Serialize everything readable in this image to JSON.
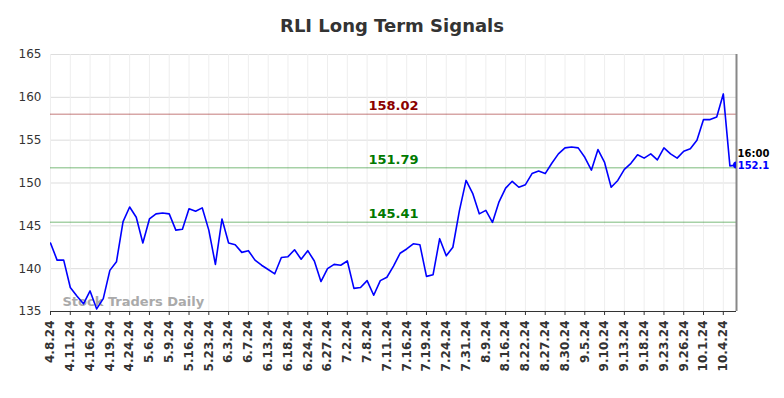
{
  "chart_data": {
    "type": "line",
    "title": "RLI Long Term Signals",
    "categories": [
      "4.8.24",
      null,
      null,
      "4.11.24",
      null,
      null,
      "4.16.24",
      null,
      null,
      "4.19.24",
      null,
      null,
      "4.24.24",
      null,
      null,
      "5.6.24",
      null,
      null,
      "5.9.24",
      null,
      null,
      "5.16.24",
      null,
      null,
      "5.23.24",
      null,
      null,
      "6.3.24",
      null,
      null,
      "6.7.24",
      null,
      null,
      "6.13.24",
      null,
      null,
      "6.18.24",
      null,
      null,
      "6.24.24",
      null,
      null,
      "6.27.24",
      null,
      null,
      "7.2.24",
      null,
      null,
      "7.8.24",
      null,
      null,
      "7.11.24",
      null,
      null,
      "7.16.24",
      null,
      null,
      "7.19.24",
      null,
      null,
      "7.24.24",
      null,
      null,
      "7.31.24",
      null,
      null,
      "8.9.24",
      null,
      null,
      "8.16.24",
      null,
      null,
      "8.22.24",
      null,
      null,
      "8.27.24",
      null,
      null,
      "8.30.24",
      null,
      null,
      "9.5.24",
      null,
      null,
      "9.10.24",
      null,
      null,
      "9.13.24",
      null,
      null,
      "9.18.24",
      null,
      null,
      "9.23.24",
      null,
      null,
      "9.26.24",
      null,
      null,
      "10.1.24",
      null,
      null,
      "10.4.24",
      null,
      null
    ],
    "values": [
      143,
      141,
      141,
      137.8,
      136.8,
      135.9,
      137.4,
      135.3,
      136.5,
      139.8,
      140.8,
      145.5,
      147.2,
      146,
      143,
      145.8,
      146.4,
      146.5,
      146.4,
      144.5,
      144.6,
      147,
      146.7,
      147.1,
      144.5,
      140.5,
      145.8,
      143,
      142.8,
      141.9,
      142.1,
      141,
      140.4,
      139.9,
      139.4,
      141.3,
      141.4,
      142.2,
      141.1,
      142.1,
      140.9,
      138.5,
      140,
      140.5,
      140.4,
      140.9,
      137.7,
      137.8,
      138.6,
      136.9,
      138.6,
      139,
      140.3,
      141.8,
      142.3,
      142.9,
      142.8,
      139.1,
      139.3,
      143.5,
      141.5,
      142.5,
      146.8,
      150.3,
      148.8,
      146.4,
      146.8,
      145.4,
      147.8,
      149.4,
      150.2,
      149.5,
      149.8,
      151.1,
      151.4,
      151.1,
      152.3,
      153.4,
      154.1,
      154.2,
      154.1,
      153,
      151.5,
      153.9,
      152.4,
      149.5,
      150.3,
      151.6,
      152.3,
      153.3,
      152.9,
      153.4,
      152.7,
      154.1,
      153.4,
      152.9,
      153.7,
      154,
      155,
      157.4,
      157.4,
      157.7,
      160.4,
      152,
      152.1
    ],
    "color": "#0000ff",
    "ylim": [
      135,
      165
    ],
    "yticks": [
      135,
      140,
      145,
      150,
      155,
      160,
      165
    ],
    "grid": true,
    "marker": "none",
    "reference_lines": [
      {
        "value": 158.02,
        "color": "#8b0000"
      },
      {
        "value": 151.79,
        "color": "#007a00"
      },
      {
        "value": 145.41,
        "color": "#007a00"
      }
    ],
    "watermark": "Stock Traders Daily",
    "last_label": {
      "time": "16:00",
      "value": 152.1
    }
  }
}
